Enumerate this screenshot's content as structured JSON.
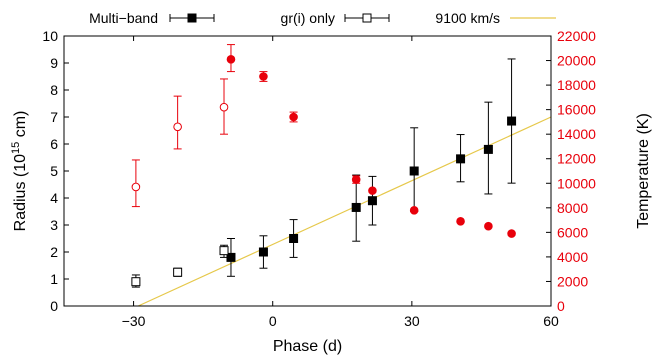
{
  "chart_data": {
    "type": "scatter",
    "xlabel": "Phase (d)",
    "ylabel": "Radius (10",
    "ylabel_exponent": "15",
    "ylabel_unit": " cm)",
    "y2label": "Temperature (K)",
    "xlim": [
      -45,
      60
    ],
    "ylim": [
      0,
      10
    ],
    "y2lim": [
      0,
      22000
    ],
    "grid": false,
    "legend_position": "top",
    "colors": {
      "multiband": "#000000",
      "gr_only": "#000000",
      "fit": "#e6c84a",
      "temperature": "#e8000b",
      "axis": "#000000",
      "right_axis": "#e8000b"
    },
    "x_ticks": [
      "−30",
      "0",
      "30",
      "60"
    ],
    "x_tick_values": [
      -30,
      0,
      30,
      60
    ],
    "y_ticks": [
      "0",
      "1",
      "2",
      "3",
      "4",
      "5",
      "6",
      "7",
      "8",
      "9",
      "10"
    ],
    "y2_ticks": [
      "0",
      "2000",
      "4000",
      "6000",
      "8000",
      "10000",
      "12000",
      "14000",
      "16000",
      "18000",
      "20000",
      "22000"
    ],
    "legend": [
      {
        "label": "Multi−band",
        "marker": "filled-square"
      },
      {
        "label": "gr(i) only",
        "marker": "open-square"
      },
      {
        "label": "9100 km/s",
        "marker": "line"
      }
    ],
    "series": [
      {
        "name": "Multi−band",
        "marker": "filled-square",
        "axis": "left",
        "points": [
          {
            "x": -9,
            "y": 1.8,
            "ylo": 1.1,
            "yhi": 2.5
          },
          {
            "x": -2,
            "y": 2.0,
            "ylo": 1.4,
            "yhi": 2.6
          },
          {
            "x": 4.5,
            "y": 2.5,
            "ylo": 1.8,
            "yhi": 3.2
          },
          {
            "x": 18,
            "y": 3.65,
            "ylo": 2.4,
            "yhi": 4.85
          },
          {
            "x": 21.5,
            "y": 3.9,
            "ylo": 3.0,
            "yhi": 4.8
          },
          {
            "x": 30.5,
            "y": 5.0,
            "ylo": 3.5,
            "yhi": 6.6
          },
          {
            "x": 40.5,
            "y": 5.45,
            "ylo": 4.6,
            "yhi": 6.35
          },
          {
            "x": 46.5,
            "y": 5.8,
            "ylo": 4.15,
            "yhi": 7.55
          },
          {
            "x": 51.5,
            "y": 6.85,
            "ylo": 4.55,
            "yhi": 9.15
          }
        ]
      },
      {
        "name": "gr(i) only",
        "marker": "open-square",
        "axis": "left",
        "points": [
          {
            "x": -29.5,
            "y": 0.9,
            "ylo": 0.7,
            "yhi": 1.15
          },
          {
            "x": -20.5,
            "y": 1.25,
            "ylo": 1.1,
            "yhi": 1.4
          },
          {
            "x": -10.5,
            "y": 2.05,
            "ylo": 1.8,
            "yhi": 2.25
          }
        ]
      },
      {
        "name": "9100 km/s",
        "type": "line",
        "axis": "left",
        "points": [
          {
            "x": -29,
            "y": 0.0
          },
          {
            "x": 60,
            "y": 7.0
          }
        ]
      },
      {
        "name": "Temperature",
        "marker": "open-circle",
        "axis": "right",
        "points": [
          {
            "x": -29.5,
            "y": 9700,
            "ylo": 8100,
            "yhi": 11900
          },
          {
            "x": -20.5,
            "y": 14600,
            "ylo": 12800,
            "yhi": 17100
          },
          {
            "x": -10.5,
            "y": 16200,
            "ylo": 14000,
            "yhi": 18500
          }
        ]
      },
      {
        "name": "Temperature",
        "marker": "filled-circle",
        "axis": "right",
        "points": [
          {
            "x": -9,
            "y": 20100,
            "ylo": 19100,
            "yhi": 21300
          },
          {
            "x": -2,
            "y": 18700,
            "ylo": 18300,
            "yhi": 19100
          },
          {
            "x": 4.5,
            "y": 15400,
            "ylo": 15000,
            "yhi": 15800
          },
          {
            "x": 18,
            "y": 10300,
            "ylo": 10000,
            "yhi": 10600
          },
          {
            "x": 21.5,
            "y": 9400
          },
          {
            "x": 30.5,
            "y": 7800
          },
          {
            "x": 40.5,
            "y": 6900
          },
          {
            "x": 46.5,
            "y": 6500
          },
          {
            "x": 51.5,
            "y": 5900
          }
        ]
      }
    ]
  }
}
